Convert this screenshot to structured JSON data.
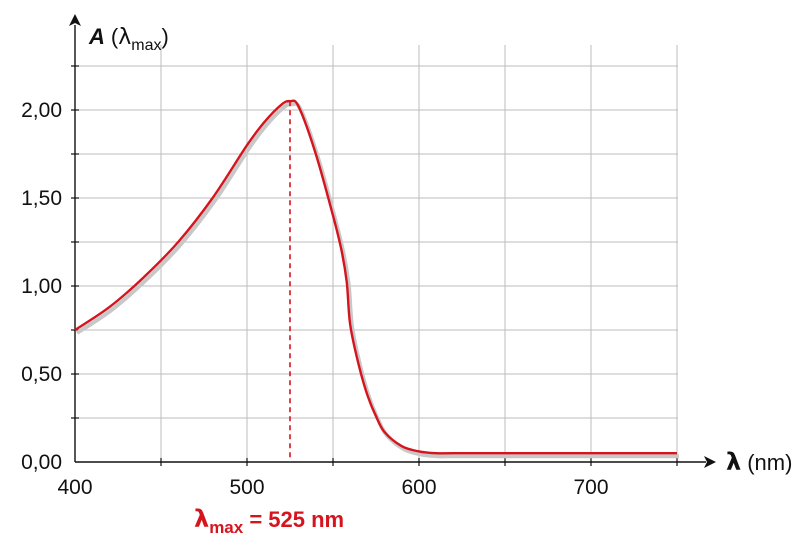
{
  "chart_data": {
    "type": "line",
    "title": "",
    "ylabel": {
      "symbol": "A",
      "open": "(",
      "greek": "λ",
      "sub": "max",
      "close": ")"
    },
    "xlabel": {
      "symbol": "λ",
      "unit": "(nm)"
    },
    "xlim": [
      400,
      750
    ],
    "ylim": [
      0,
      2.25
    ],
    "x_ticks": [
      400,
      500,
      600,
      700
    ],
    "x_tick_labels": [
      "400",
      "500",
      "600",
      "700"
    ],
    "y_ticks": [
      0,
      0.5,
      1.0,
      1.5,
      2.0
    ],
    "y_tick_labels": [
      "0,00",
      "0,50",
      "1,00",
      "1,50",
      "2,00"
    ],
    "grid": true,
    "series": [
      {
        "x": [
          400,
          420,
          440,
          460,
          480,
          500,
          510,
          520,
          525,
          530,
          540,
          550,
          555,
          558,
          560,
          565,
          570,
          575,
          580,
          590,
          600,
          610,
          620,
          650,
          700,
          750
        ],
        "y": [
          0.75,
          0.88,
          1.05,
          1.25,
          1.5,
          1.8,
          1.93,
          2.03,
          2.05,
          2.02,
          1.75,
          1.4,
          1.2,
          1.02,
          0.78,
          0.55,
          0.38,
          0.26,
          0.17,
          0.09,
          0.06,
          0.05,
          0.05,
          0.05,
          0.05,
          0.05
        ]
      }
    ],
    "peak": {
      "x": 525,
      "y": 2.05,
      "label": {
        "greek": "λ",
        "sub": "max",
        "rest": " = 525 nm"
      }
    },
    "colors": {
      "curve": "#d6141e",
      "grid": "#bcbcbc",
      "axis": "#111111",
      "label_red": "#d6141e"
    }
  }
}
